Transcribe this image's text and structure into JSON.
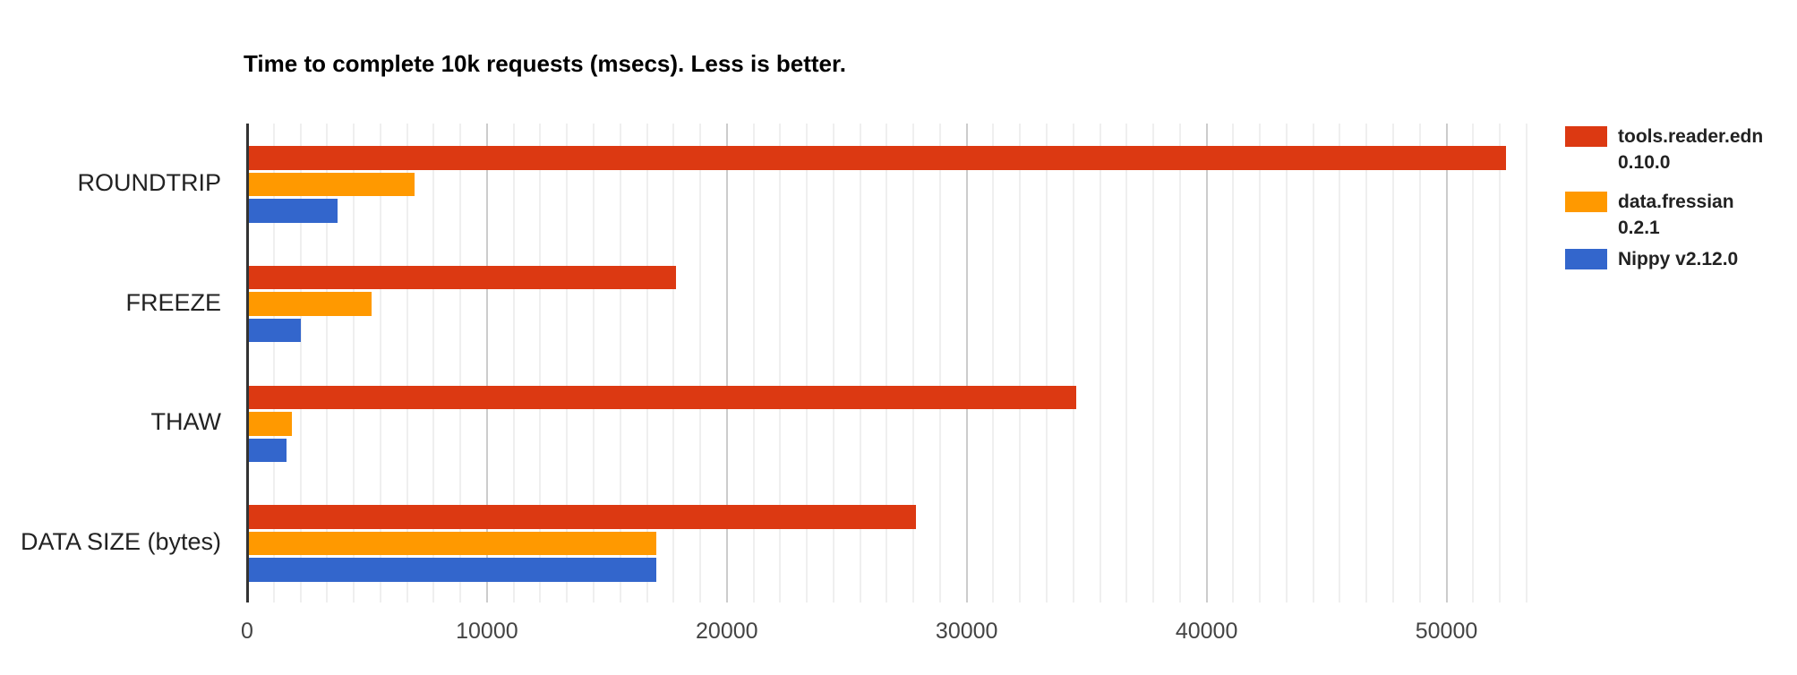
{
  "chart_data": {
    "type": "bar",
    "orientation": "horizontal",
    "title": "Time to complete 10k requests (msecs). Less is better.",
    "categories": [
      "ROUNDTRIP",
      "FREEZE",
      "THAW",
      "DATA SIZE (bytes)"
    ],
    "series": [
      {
        "name": "tools.reader.edn 0.10.0",
        "legend_lines": [
          "tools.reader.edn",
          "0.10.0"
        ],
        "color": "#dc3912",
        "values": [
          52400,
          17800,
          34500,
          27800
        ]
      },
      {
        "name": "data.fressian 0.2.1",
        "legend_lines": [
          "data.fressian",
          "0.2.1"
        ],
        "color": "#ff9900",
        "values": [
          6900,
          5100,
          1800,
          17000
        ]
      },
      {
        "name": "Nippy v2.12.0",
        "legend_lines": [
          "Nippy v2.12.0"
        ],
        "color": "#3366cc",
        "values": [
          3700,
          2150,
          1550,
          17000
        ]
      }
    ],
    "x_axis": {
      "min": 0,
      "max": 53333,
      "tick_values": [
        0,
        10000,
        20000,
        30000,
        40000,
        50000
      ],
      "tick_labels": [
        "0",
        "10000",
        "20000",
        "30000",
        "40000",
        "50000"
      ],
      "minor_divisions_per_major": 9
    },
    "grid": true,
    "legend_position": "right",
    "background": "#ffffff"
  }
}
